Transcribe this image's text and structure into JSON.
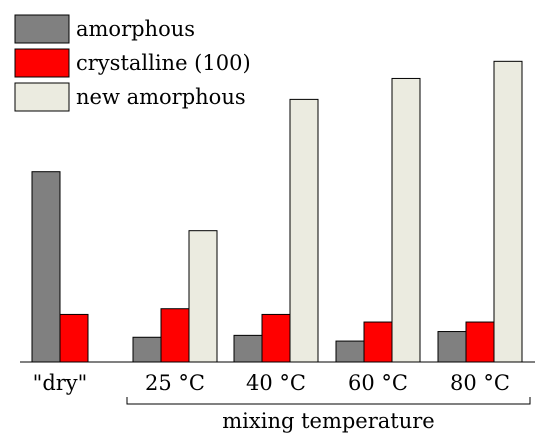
{
  "chart_data": {
    "type": "bar",
    "categories": [
      "\"dry\"",
      "25 °C",
      "40 °C",
      "60 °C",
      "80 °C"
    ],
    "series": [
      {
        "name": "amorphous",
        "color": "#808080",
        "values": [
          100,
          13,
          14,
          11,
          16
        ]
      },
      {
        "name": "crystalline (100)",
        "color": "#ff0000",
        "values": [
          25,
          28,
          25,
          21,
          21
        ]
      },
      {
        "name": "new amorphous",
        "color": "#ebebe0",
        "values": [
          null,
          69,
          138,
          149,
          158
        ]
      }
    ],
    "ylim": [
      0,
      165
    ],
    "grid": false,
    "legend_position": "top-left",
    "group_label": "mixing temperature",
    "group_label_categories": [
      "25 °C",
      "40 °C",
      "60 °C",
      "80 °C"
    ]
  }
}
